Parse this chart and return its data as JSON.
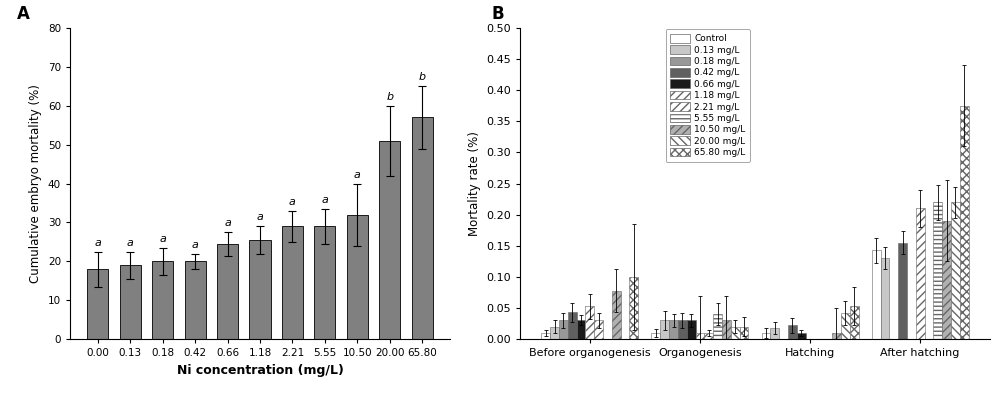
{
  "panel_A": {
    "categories": [
      "0.00",
      "0.13",
      "0.18",
      "0.42",
      "0.66",
      "1.18",
      "2.21",
      "5.55",
      "10.50",
      "20.00",
      "65.80"
    ],
    "values": [
      18.0,
      19.0,
      20.0,
      20.0,
      24.5,
      25.5,
      29.0,
      29.0,
      32.0,
      51.0,
      57.0
    ],
    "errors": [
      4.5,
      3.5,
      3.5,
      2.0,
      3.0,
      3.5,
      4.0,
      4.5,
      8.0,
      9.0,
      8.0
    ],
    "bar_color": "#808080",
    "labels": [
      "a",
      "a",
      "a",
      "a",
      "a",
      "a",
      "a",
      "a",
      "a",
      "b",
      "b"
    ],
    "ylabel": "Cumulative embryo mortality (%)",
    "xlabel": "Ni concentration (mg/L)",
    "title": "A",
    "ylim": [
      0,
      80
    ],
    "yticks": [
      0,
      10,
      20,
      30,
      40,
      50,
      60,
      70,
      80
    ]
  },
  "panel_B": {
    "stages": [
      "Before organogenesis",
      "Organogenesis",
      "Hatching",
      "After hatching"
    ],
    "series": [
      {
        "label": "Control",
        "color": "#ffffff",
        "hatch": "",
        "edgecolor": "#666666",
        "values": [
          0.01,
          0.01,
          0.01,
          0.143
        ],
        "errors": [
          0.005,
          0.007,
          0.008,
          0.02
        ]
      },
      {
        "label": "0.13 mg/L",
        "color": "#c8c8c8",
        "hatch": "",
        "edgecolor": "#666666",
        "values": [
          0.02,
          0.03,
          0.018,
          0.13
        ],
        "errors": [
          0.01,
          0.015,
          0.009,
          0.018
        ]
      },
      {
        "label": "0.18 mg/L",
        "color": "#989898",
        "hatch": "",
        "edgecolor": "#666666",
        "values": [
          0.03,
          0.03,
          0.0,
          0.0
        ],
        "errors": [
          0.012,
          0.01,
          0.0,
          0.0
        ]
      },
      {
        "label": "0.42 mg/L",
        "color": "#606060",
        "hatch": "",
        "edgecolor": "#666666",
        "values": [
          0.043,
          0.03,
          0.022,
          0.155
        ],
        "errors": [
          0.015,
          0.012,
          0.012,
          0.018
        ]
      },
      {
        "label": "0.66 mg/L",
        "color": "#1a1a1a",
        "hatch": "",
        "edgecolor": "#666666",
        "values": [
          0.03,
          0.03,
          0.01,
          0.0
        ],
        "errors": [
          0.008,
          0.01,
          0.005,
          0.0
        ]
      },
      {
        "label": "1.18 mg/L",
        "color": "#ffffff",
        "hatch": "////",
        "edgecolor": "#666666",
        "values": [
          0.053,
          0.01,
          0.0,
          0.21
        ],
        "errors": [
          0.02,
          0.06,
          0.0,
          0.03
        ]
      },
      {
        "label": "2.21 mg/L",
        "color": "#ffffff",
        "hatch": "////",
        "edgecolor": "#666666",
        "values": [
          0.03,
          0.01,
          0.0,
          0.0
        ],
        "errors": [
          0.012,
          0.005,
          0.0,
          0.0
        ]
      },
      {
        "label": "5.55 mg/L",
        "color": "#ffffff",
        "hatch": "----",
        "edgecolor": "#666666",
        "values": [
          0.0,
          0.04,
          0.0,
          0.22
        ],
        "errors": [
          0.0,
          0.018,
          0.0,
          0.028
        ]
      },
      {
        "label": "10.50 mg/L",
        "color": "#b0b0b0",
        "hatch": "////",
        "edgecolor": "#666666",
        "values": [
          0.078,
          0.03,
          0.01,
          0.19
        ],
        "errors": [
          0.035,
          0.04,
          0.04,
          0.065
        ]
      },
      {
        "label": "20.00 mg/L",
        "color": "#ffffff",
        "hatch": "\\\\\\\\",
        "edgecolor": "#666666",
        "values": [
          0.0,
          0.02,
          0.042,
          0.22
        ],
        "errors": [
          0.0,
          0.01,
          0.02,
          0.025
        ]
      },
      {
        "label": "65.80 mg/L",
        "color": "#ffffff",
        "hatch": "xxxx",
        "edgecolor": "#666666",
        "values": [
          0.1,
          0.02,
          0.053,
          0.375
        ],
        "errors": [
          0.085,
          0.015,
          0.03,
          0.065
        ]
      }
    ],
    "ylabel": "Mortality rate (%)",
    "title": "B",
    "ylim": [
      0,
      0.5
    ],
    "yticks": [
      0.0,
      0.05,
      0.1,
      0.15,
      0.2,
      0.25,
      0.3,
      0.35,
      0.4,
      0.45,
      0.5
    ]
  }
}
